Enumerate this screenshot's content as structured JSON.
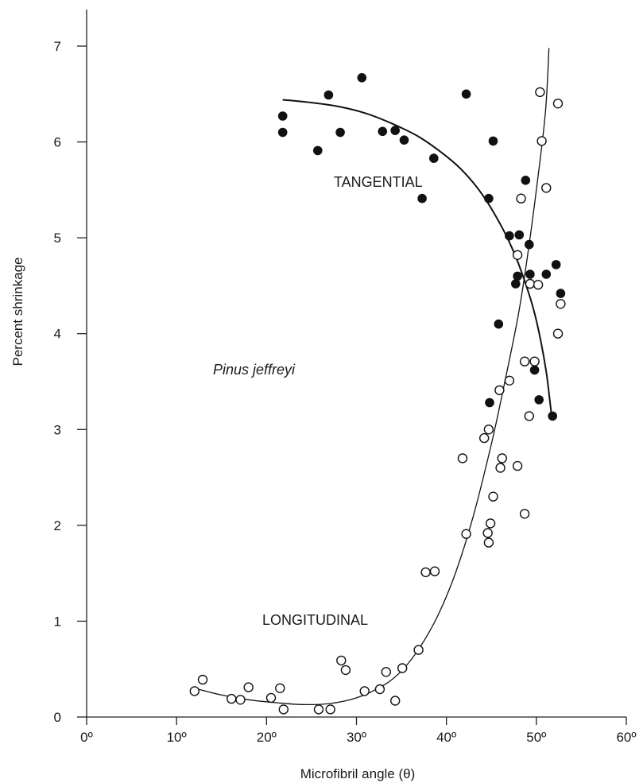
{
  "chart_data": {
    "type": "scatter",
    "title": "",
    "xlabel": "Microfibril angle (θ)",
    "ylabel": "Percent shrinkage",
    "xlim": [
      0,
      60
    ],
    "ylim": [
      0,
      7
    ],
    "xtick_labels": [
      "0º",
      "10º",
      "20º",
      "30º",
      "40º",
      "50º",
      "60º"
    ],
    "ytick_labels": [
      "0",
      "1",
      "2",
      "3",
      "4",
      "5",
      "6",
      "7"
    ],
    "grid": false,
    "legend": "none",
    "annotations": [
      {
        "id": "tangential",
        "text": "TANGENTIAL"
      },
      {
        "id": "species",
        "text": "Pinus jeffreyi"
      },
      {
        "id": "longitudinal",
        "text": "LONGITUDINAL"
      }
    ],
    "series": [
      {
        "name": "TANGENTIAL",
        "marker": "filled-circle",
        "points": [
          [
            21.8,
            6.27
          ],
          [
            21.8,
            6.1
          ],
          [
            25.7,
            5.91
          ],
          [
            26.9,
            6.49
          ],
          [
            28.2,
            6.1
          ],
          [
            30.6,
            6.67
          ],
          [
            32.9,
            6.11
          ],
          [
            34.3,
            6.12
          ],
          [
            35.3,
            6.02
          ],
          [
            38.6,
            5.83
          ],
          [
            37.3,
            5.41
          ],
          [
            42.2,
            6.5
          ],
          [
            45.2,
            6.01
          ],
          [
            44.7,
            5.41
          ],
          [
            48.8,
            5.6
          ],
          [
            47.0,
            5.02
          ],
          [
            48.1,
            5.03
          ],
          [
            49.2,
            4.93
          ],
          [
            52.2,
            4.72
          ],
          [
            51.1,
            4.62
          ],
          [
            49.3,
            4.62
          ],
          [
            47.9,
            4.6
          ],
          [
            47.7,
            4.52
          ],
          [
            52.7,
            4.42
          ],
          [
            45.8,
            4.1
          ],
          [
            49.8,
            3.62
          ],
          [
            44.8,
            3.28
          ],
          [
            50.3,
            3.31
          ],
          [
            51.8,
            3.14
          ]
        ]
      },
      {
        "name": "LONGITUDINAL",
        "marker": "open-circle",
        "points": [
          [
            50.4,
            6.52
          ],
          [
            52.4,
            6.4
          ],
          [
            50.6,
            6.01
          ],
          [
            51.1,
            5.52
          ],
          [
            48.3,
            5.41
          ],
          [
            47.9,
            4.82
          ],
          [
            49.3,
            4.52
          ],
          [
            50.2,
            4.51
          ],
          [
            52.7,
            4.31
          ],
          [
            52.4,
            4.0
          ],
          [
            48.7,
            3.71
          ],
          [
            49.8,
            3.71
          ],
          [
            47.0,
            3.51
          ],
          [
            45.9,
            3.41
          ],
          [
            49.2,
            3.14
          ],
          [
            44.7,
            3.0
          ],
          [
            44.2,
            2.91
          ],
          [
            41.8,
            2.7
          ],
          [
            46.2,
            2.7
          ],
          [
            46.0,
            2.6
          ],
          [
            47.9,
            2.62
          ],
          [
            45.2,
            2.3
          ],
          [
            48.7,
            2.12
          ],
          [
            44.9,
            2.02
          ],
          [
            44.6,
            1.92
          ],
          [
            42.2,
            1.91
          ],
          [
            44.7,
            1.82
          ],
          [
            37.7,
            1.51
          ],
          [
            38.7,
            1.52
          ],
          [
            36.9,
            0.7
          ],
          [
            28.3,
            0.59
          ],
          [
            28.8,
            0.49
          ],
          [
            33.3,
            0.47
          ],
          [
            35.1,
            0.51
          ],
          [
            12.9,
            0.39
          ],
          [
            12.0,
            0.27
          ],
          [
            18.0,
            0.31
          ],
          [
            21.5,
            0.3
          ],
          [
            16.1,
            0.19
          ],
          [
            17.1,
            0.18
          ],
          [
            20.5,
            0.2
          ],
          [
            21.9,
            0.08
          ],
          [
            30.9,
            0.27
          ],
          [
            32.6,
            0.29
          ],
          [
            34.3,
            0.17
          ],
          [
            25.8,
            0.08
          ],
          [
            27.1,
            0.08
          ]
        ]
      }
    ],
    "curves": [
      {
        "name": "TANGENTIAL",
        "points": [
          [
            21.8,
            6.44
          ],
          [
            25.0,
            6.41
          ],
          [
            28.0,
            6.37
          ],
          [
            31.0,
            6.3
          ],
          [
            34.0,
            6.19
          ],
          [
            37.0,
            6.05
          ],
          [
            40.0,
            5.85
          ],
          [
            42.0,
            5.68
          ],
          [
            44.0,
            5.45
          ],
          [
            46.0,
            5.14
          ],
          [
            47.5,
            4.85
          ],
          [
            48.7,
            4.55
          ],
          [
            49.7,
            4.25
          ],
          [
            50.5,
            3.92
          ],
          [
            51.1,
            3.6
          ],
          [
            51.5,
            3.3
          ],
          [
            51.7,
            3.14
          ]
        ]
      },
      {
        "name": "LONGITUDINAL",
        "points": [
          [
            12.0,
            0.3
          ],
          [
            15.0,
            0.23
          ],
          [
            18.0,
            0.18
          ],
          [
            21.0,
            0.15
          ],
          [
            24.0,
            0.13
          ],
          [
            27.0,
            0.14
          ],
          [
            30.0,
            0.2
          ],
          [
            33.0,
            0.33
          ],
          [
            35.0,
            0.48
          ],
          [
            37.0,
            0.72
          ],
          [
            39.0,
            1.05
          ],
          [
            41.0,
            1.5
          ],
          [
            43.0,
            2.1
          ],
          [
            45.0,
            2.85
          ],
          [
            46.5,
            3.5
          ],
          [
            48.0,
            4.2
          ],
          [
            49.0,
            4.8
          ],
          [
            50.0,
            5.5
          ],
          [
            51.0,
            6.3
          ],
          [
            51.4,
            6.98
          ]
        ]
      }
    ]
  }
}
